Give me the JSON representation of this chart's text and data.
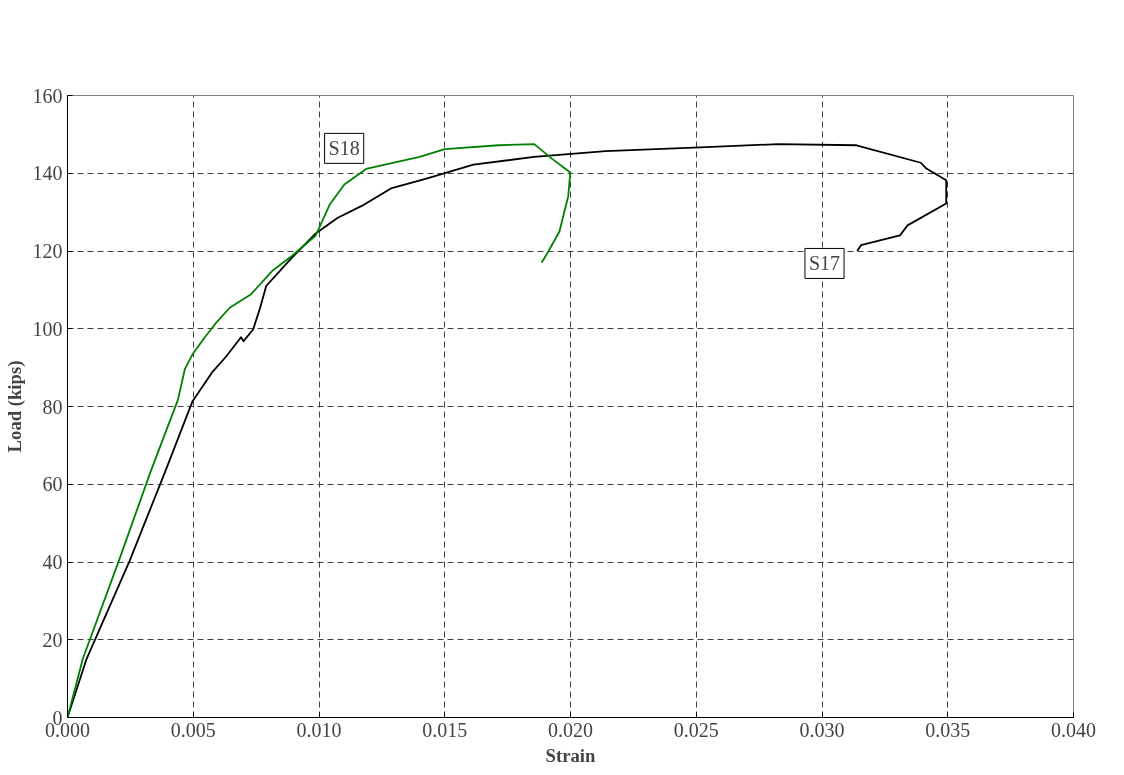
{
  "chart_data": {
    "type": "line",
    "xlabel": "Strain",
    "ylabel": "Load (kips)",
    "xlim": [
      0,
      0.04
    ],
    "ylim": [
      0,
      160
    ],
    "xticks": [
      {
        "value": 0,
        "label": "0.000"
      },
      {
        "value": 0.005,
        "label": "0.005"
      },
      {
        "value": 0.01,
        "label": "0.010"
      },
      {
        "value": 0.015,
        "label": "0.015"
      },
      {
        "value": 0.02,
        "label": "0.020"
      },
      {
        "value": 0.025,
        "label": "0.025"
      },
      {
        "value": 0.03,
        "label": "0.030"
      },
      {
        "value": 0.035,
        "label": "0.035"
      },
      {
        "value": 0.04,
        "label": "0.040"
      }
    ],
    "yticks": [
      0,
      20,
      40,
      60,
      80,
      100,
      120,
      140,
      160
    ],
    "grid": true,
    "marker": "none",
    "line_style": "solid",
    "series": [
      {
        "color": "#000000",
        "x": [
          0,
          0.00076,
          0.00247,
          0.0039,
          0.00496,
          0.00574,
          0.0063,
          0.0069,
          0.007,
          0.00738,
          0.00766,
          0.0079,
          0.00888,
          0.00987,
          0.01073,
          0.0117,
          0.01286,
          0.01427,
          0.01614,
          0.01855,
          0.0214,
          0.0254,
          0.02825,
          0.03137,
          0.03393,
          0.03415,
          0.03494,
          0.03494,
          0.0334,
          0.0331,
          0.03155,
          0.0314
        ],
        "values": [
          0,
          15.1,
          40.3,
          63.5,
          81.2,
          88.7,
          92.8,
          97.8,
          96.8,
          99.8,
          105.4,
          111,
          118,
          124.5,
          128.5,
          131.6,
          136.1,
          138.6,
          142.2,
          144.2,
          145.7,
          146.7,
          147.5,
          147.2,
          142.7,
          141.2,
          138.2,
          132.2,
          126.6,
          124,
          121.5,
          120
        ]
      },
      {
        "color": "#008000",
        "x": [
          0,
          0.00061,
          0.00204,
          0.00332,
          0.00439,
          0.00467,
          0.00496,
          0.00546,
          0.00588,
          0.00645,
          0.0073,
          0.00816,
          0.00888,
          0.00987,
          0.01044,
          0.01101,
          0.01187,
          0.014,
          0.015,
          0.01714,
          0.01856,
          0.01927,
          0.01999,
          0.01991,
          0.01956,
          0.01913,
          0.01885
        ],
        "values": [
          0,
          15.1,
          40.3,
          63.5,
          81.7,
          89.7,
          93.3,
          97.8,
          101.3,
          105.4,
          108.9,
          115,
          118.5,
          124,
          132.1,
          137.1,
          141.1,
          144.2,
          146.2,
          147.2,
          147.5,
          143.7,
          140.2,
          134.1,
          125,
          120,
          117
        ]
      }
    ],
    "annotations": [
      {
        "text": "S18",
        "x": 0.011,
        "y": 146.4
      },
      {
        "text": "S17",
        "x": 0.0301,
        "y": 116.8
      }
    ]
  }
}
